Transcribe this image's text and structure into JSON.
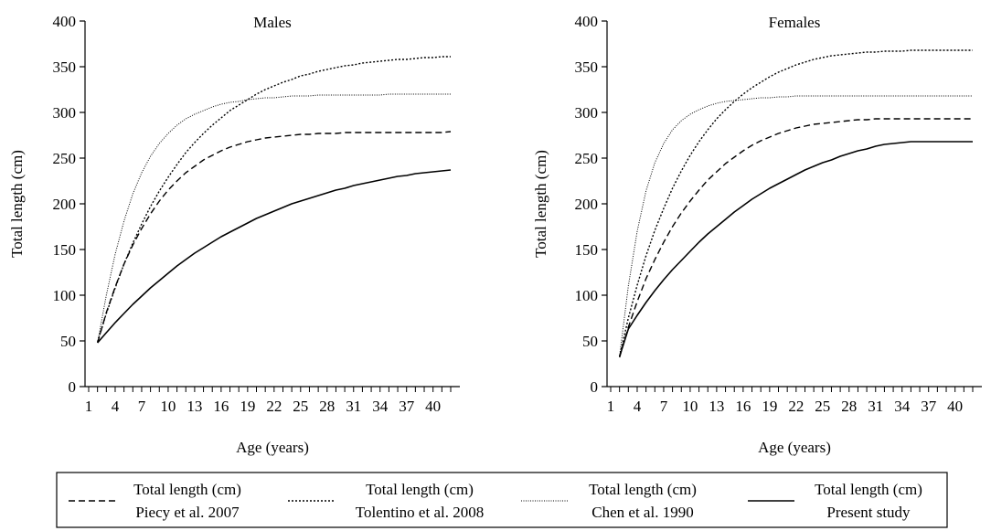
{
  "chart_data": [
    {
      "type": "line",
      "title": "Males",
      "xlabel": "Age (years)",
      "ylabel": "Total length (cm)",
      "xlim": [
        1,
        42
      ],
      "ylim": [
        0,
        400
      ],
      "xticks": [
        1,
        4,
        7,
        10,
        13,
        16,
        19,
        22,
        25,
        28,
        31,
        34,
        37,
        40
      ],
      "yticks": [
        0,
        50,
        100,
        150,
        200,
        250,
        300,
        350,
        400
      ],
      "grid": false,
      "x": [
        2,
        3,
        4,
        5,
        6,
        7,
        8,
        9,
        10,
        11,
        12,
        13,
        14,
        15,
        16,
        17,
        18,
        19,
        20,
        21,
        22,
        23,
        24,
        25,
        26,
        27,
        28,
        29,
        30,
        31,
        32,
        33,
        34,
        35,
        36,
        37,
        38,
        39,
        40,
        41,
        42
      ],
      "series": [
        {
          "values": [
            48,
            81,
            109,
            134,
            155,
            173,
            189,
            203,
            215,
            225,
            234,
            241,
            248,
            253,
            258,
            262,
            265,
            268,
            270,
            272,
            273,
            274,
            275,
            276,
            276,
            277,
            277,
            277,
            278,
            278,
            278,
            278,
            278,
            278,
            278,
            278,
            278,
            278,
            278,
            278,
            279
          ]
        },
        {
          "values": [
            49,
            80,
            108,
            134,
            157,
            178,
            197,
            214,
            229,
            243,
            256,
            267,
            277,
            286,
            294,
            302,
            308,
            314,
            320,
            325,
            329,
            333,
            336,
            340,
            342,
            345,
            347,
            349,
            351,
            352,
            354,
            355,
            356,
            357,
            358,
            358,
            359,
            360,
            360,
            361,
            361
          ]
        },
        {
          "values": [
            48,
            100,
            145,
            181,
            211,
            234,
            252,
            266,
            277,
            286,
            293,
            298,
            302,
            306,
            309,
            311,
            312,
            314,
            315,
            316,
            316,
            317,
            318,
            318,
            318,
            319,
            319,
            319,
            319,
            319,
            319,
            319,
            319,
            320,
            320,
            320,
            320,
            320,
            320,
            320,
            320
          ]
        },
        {
          "values": [
            48,
            59,
            70,
            80,
            90,
            99,
            108,
            116,
            124,
            132,
            139,
            146,
            152,
            158,
            164,
            169,
            174,
            179,
            184,
            188,
            192,
            196,
            200,
            203,
            206,
            209,
            212,
            215,
            217,
            220,
            222,
            224,
            226,
            228,
            230,
            231,
            233,
            234,
            235,
            236,
            237
          ]
        }
      ]
    },
    {
      "type": "line",
      "title": "Females",
      "xlabel": "Age (years)",
      "ylabel": "Total length (cm)",
      "xlim": [
        1,
        42
      ],
      "ylim": [
        0,
        400
      ],
      "xticks": [
        1,
        4,
        7,
        10,
        13,
        16,
        19,
        22,
        25,
        28,
        31,
        34,
        37,
        40
      ],
      "yticks": [
        0,
        50,
        100,
        150,
        200,
        250,
        300,
        350,
        400
      ],
      "grid": false,
      "x": [
        2,
        3,
        4,
        5,
        6,
        7,
        8,
        9,
        10,
        11,
        12,
        13,
        14,
        15,
        16,
        17,
        18,
        19,
        20,
        21,
        22,
        23,
        24,
        25,
        26,
        27,
        28,
        29,
        30,
        31,
        32,
        33,
        34,
        35,
        36,
        37,
        38,
        39,
        40,
        41,
        42
      ],
      "series": [
        {
          "values": [
            32,
            65,
            93,
            118,
            139,
            158,
            175,
            190,
            203,
            215,
            226,
            235,
            244,
            251,
            258,
            264,
            269,
            273,
            277,
            280,
            283,
            285,
            287,
            288,
            289,
            290,
            291,
            292,
            292,
            293,
            293,
            293,
            293,
            293,
            293,
            293,
            293,
            293,
            293,
            293,
            293
          ]
        },
        {
          "values": [
            33,
            75,
            111,
            143,
            171,
            195,
            217,
            236,
            253,
            268,
            281,
            293,
            303,
            312,
            320,
            327,
            333,
            339,
            344,
            348,
            352,
            355,
            358,
            360,
            362,
            363,
            364,
            365,
            366,
            366,
            367,
            367,
            367,
            368,
            368,
            368,
            368,
            368,
            368,
            368,
            368
          ]
        },
        {
          "values": [
            33,
            110,
            170,
            214,
            245,
            266,
            281,
            291,
            298,
            303,
            307,
            310,
            312,
            313,
            314,
            315,
            316,
            316,
            317,
            317,
            318,
            318,
            318,
            318,
            318,
            318,
            318,
            318,
            318,
            318,
            318,
            318,
            318,
            318,
            318,
            318,
            318,
            318,
            318,
            318,
            318
          ]
        },
        {
          "values": [
            33,
            63,
            78,
            92,
            105,
            117,
            128,
            138,
            148,
            158,
            167,
            175,
            183,
            191,
            198,
            205,
            211,
            217,
            222,
            227,
            232,
            237,
            241,
            245,
            248,
            252,
            255,
            258,
            260,
            263,
            265,
            266,
            267,
            268,
            268,
            268,
            268,
            268,
            268,
            268,
            268
          ]
        }
      ]
    }
  ],
  "legend": {
    "placement": "bottom",
    "items": [
      {
        "line1": "Total length (cm)",
        "line2": "Piecy et al. 2007",
        "style": "dashed"
      },
      {
        "line1": "Total length (cm)",
        "line2": "Tolentino et al. 2008",
        "style": "short-dotted"
      },
      {
        "line1": "Total length (cm)",
        "line2": "Chen et al. 1990",
        "style": "fine-dotted"
      },
      {
        "line1": "Total length (cm)",
        "line2": "Present study",
        "style": "solid"
      }
    ]
  }
}
